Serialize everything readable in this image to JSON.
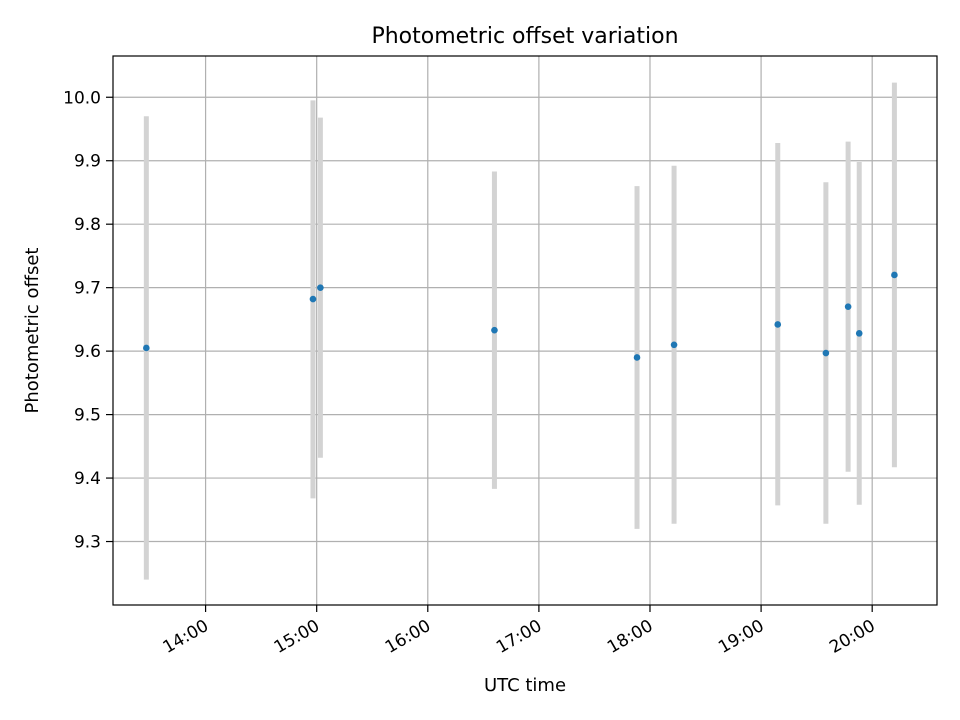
{
  "chart_data": {
    "type": "scatter",
    "title": "Photometric offset variation",
    "xlabel": "UTC time",
    "ylabel": "Photometric offset",
    "x_tick_labels": [
      "14:00",
      "15:00",
      "16:00",
      "17:00",
      "18:00",
      "19:00",
      "20:00"
    ],
    "y_tick_labels": [
      "9.3",
      "9.4",
      "9.5",
      "9.6",
      "9.7",
      "9.8",
      "9.9",
      "10.0"
    ],
    "x_ticks": [
      "14:00",
      "15:00",
      "16:00",
      "17:00",
      "18:00",
      "19:00",
      "20:00"
    ],
    "y_ticks": [
      9.3,
      9.4,
      9.5,
      9.6,
      9.7,
      9.8,
      9.9,
      10.0
    ],
    "xlim": [
      "13:10",
      "20:35"
    ],
    "ylim": [
      9.2,
      10.065
    ],
    "grid": true,
    "colors": {
      "point": "#1f77b4",
      "errorbar": "#d3d3d3",
      "grid": "#b0b0b0",
      "axis": "#000000"
    },
    "points": [
      {
        "x": "13:28",
        "y": 9.605,
        "ymin": 9.24,
        "ymax": 9.97
      },
      {
        "x": "14:58",
        "y": 9.682,
        "ymin": 9.368,
        "ymax": 9.995
      },
      {
        "x": "15:02",
        "y": 9.7,
        "ymin": 9.432,
        "ymax": 9.968
      },
      {
        "x": "16:36",
        "y": 9.633,
        "ymin": 9.383,
        "ymax": 9.883
      },
      {
        "x": "17:53",
        "y": 9.59,
        "ymin": 9.32,
        "ymax": 9.86
      },
      {
        "x": "18:13",
        "y": 9.61,
        "ymin": 9.328,
        "ymax": 9.892
      },
      {
        "x": "19:09",
        "y": 9.642,
        "ymin": 9.357,
        "ymax": 9.928
      },
      {
        "x": "19:35",
        "y": 9.597,
        "ymin": 9.328,
        "ymax": 9.866
      },
      {
        "x": "19:47",
        "y": 9.67,
        "ymin": 9.41,
        "ymax": 9.93
      },
      {
        "x": "19:53",
        "y": 9.628,
        "ymin": 9.358,
        "ymax": 9.898
      },
      {
        "x": "20:12",
        "y": 9.72,
        "ymin": 9.417,
        "ymax": 10.023
      }
    ]
  }
}
